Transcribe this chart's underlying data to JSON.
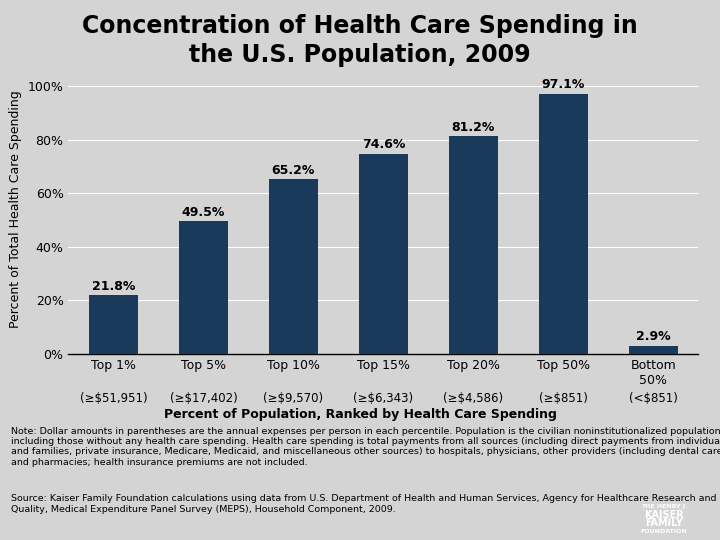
{
  "title": "Concentration of Health Care Spending in\nthe U.S. Population, 2009",
  "categories": [
    "Top 1%",
    "Top 5%",
    "Top 10%",
    "Top 15%",
    "Top 20%",
    "Top 50%",
    "Bottom\n50%"
  ],
  "subtitles": [
    "(≥$51,951)",
    "(≥$17,402)",
    "(≥$9,570)",
    "(≥$6,343)",
    "(≥$4,586)",
    "(≥$851)",
    "(<$851)"
  ],
  "values": [
    21.8,
    49.5,
    65.2,
    74.6,
    81.2,
    97.1,
    2.9
  ],
  "bar_color": "#1a3a5c",
  "xlabel": "Percent of Population, Ranked by Health Care Spending",
  "ylabel": "Percent of Total Health Care Spending",
  "yticks": [
    0,
    20,
    40,
    60,
    80,
    100
  ],
  "ytick_labels": [
    "0%",
    "20%",
    "40%",
    "60%",
    "80%",
    "100%"
  ],
  "background_color": "#d4d4d4",
  "note_text": "Note: Dollar amounts in parentheses are the annual expenses per person in each percentile. Population is the civilian noninstitutionalized population,\nincluding those without any health care spending. Health care spending is total payments from all sources (including direct payments from individuals\nand families, private insurance, Medicare, Medicaid, and miscellaneous other sources) to hospitals, physicians, other providers (including dental care),\nand pharmacies; health insurance premiums are not included.",
  "source_text": "Source: Kaiser Family Foundation calculations using data from U.S. Department of Health and Human Services, Agency for Healthcare Research and\nQuality, Medical Expenditure Panel Survey (MEPS), Household Component, 2009.",
  "title_fontsize": 17,
  "axis_label_fontsize": 9,
  "tick_fontsize": 9,
  "value_label_fontsize": 9,
  "subtitle_fontsize": 8.5,
  "note_fontsize": 6.8
}
